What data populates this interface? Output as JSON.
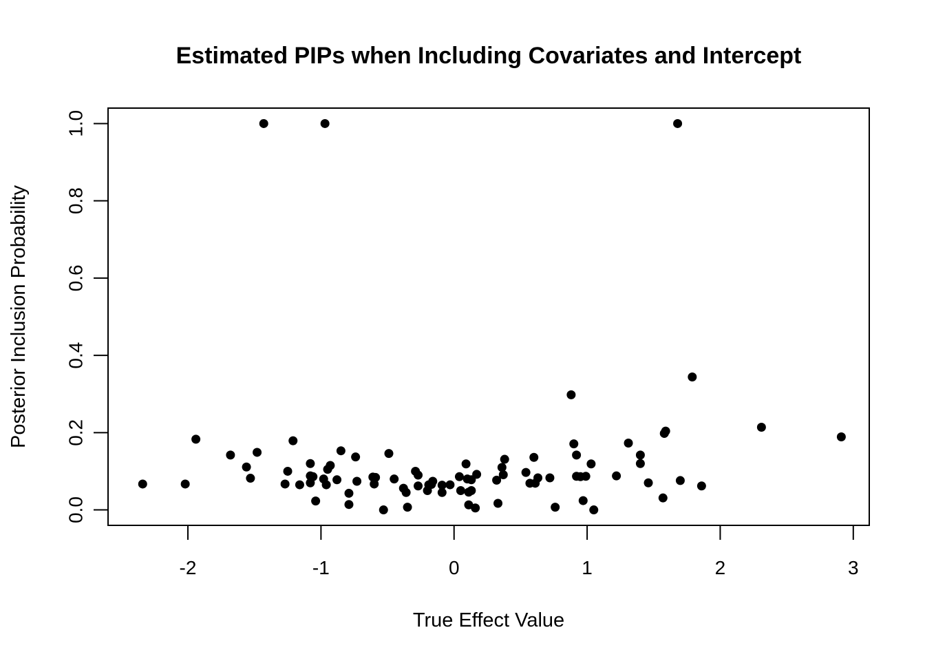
{
  "chart_data": {
    "type": "scatter",
    "title": "Estimated PIPs when Including Covariates and Intercept",
    "xlabel": "True Effect Value",
    "ylabel": "Posterior Inclusion Probability",
    "xlim": [
      -2.6,
      3.12
    ],
    "ylim": [
      -0.04,
      1.04
    ],
    "xticks": [
      -2,
      -1,
      0,
      1,
      2,
      3
    ],
    "xtick_labels": [
      "-2",
      "-1",
      "0",
      "1",
      "2",
      "3"
    ],
    "yticks": [
      0.0,
      0.2,
      0.4,
      0.6,
      0.8,
      1.0
    ],
    "ytick_labels": [
      "0.0",
      "0.2",
      "0.4",
      "0.6",
      "0.8",
      "1.0"
    ],
    "grid": false,
    "legend": "none",
    "marker_color": "#000000",
    "points": [
      [
        -1.43,
        1.0
      ],
      [
        -0.97,
        1.0
      ],
      [
        1.68,
        1.0
      ],
      [
        1.79,
        0.344
      ],
      [
        0.88,
        0.298
      ],
      [
        2.31,
        0.214
      ],
      [
        2.91,
        0.189
      ],
      [
        1.59,
        0.204
      ],
      [
        1.58,
        0.198
      ],
      [
        -1.94,
        0.183
      ],
      [
        -1.21,
        0.179
      ],
      [
        1.31,
        0.173
      ],
      [
        0.9,
        0.171
      ],
      [
        -0.85,
        0.153
      ],
      [
        -1.48,
        0.149
      ],
      [
        -0.49,
        0.146
      ],
      [
        -1.68,
        0.142
      ],
      [
        0.92,
        0.142
      ],
      [
        1.4,
        0.142
      ],
      [
        -0.74,
        0.137
      ],
      [
        0.6,
        0.136
      ],
      [
        0.38,
        0.131
      ],
      [
        -1.56,
        0.111
      ],
      [
        -1.08,
        0.12
      ],
      [
        -0.93,
        0.115
      ],
      [
        0.09,
        0.119
      ],
      [
        1.03,
        0.119
      ],
      [
        1.4,
        0.12
      ],
      [
        0.36,
        0.11
      ],
      [
        -0.95,
        0.105
      ],
      [
        -0.29,
        0.1
      ],
      [
        -1.25,
        0.1
      ],
      [
        0.54,
        0.097
      ],
      [
        -0.27,
        0.09
      ],
      [
        0.17,
        0.092
      ],
      [
        -1.08,
        0.088
      ],
      [
        -1.06,
        0.086
      ],
      [
        0.04,
        0.086
      ],
      [
        0.37,
        0.091
      ],
      [
        0.92,
        0.087
      ],
      [
        0.95,
        0.086
      ],
      [
        0.99,
        0.087
      ],
      [
        1.22,
        0.088
      ],
      [
        0.72,
        0.083
      ],
      [
        0.63,
        0.083
      ],
      [
        -1.53,
        0.082
      ],
      [
        -0.45,
        0.08
      ],
      [
        -0.88,
        0.078
      ],
      [
        -0.98,
        0.08
      ],
      [
        -0.59,
        0.084
      ],
      [
        -0.61,
        0.085
      ],
      [
        0.13,
        0.078
      ],
      [
        0.1,
        0.08
      ],
      [
        -0.73,
        0.074
      ],
      [
        -0.16,
        0.074
      ],
      [
        0.32,
        0.077
      ],
      [
        1.7,
        0.076
      ],
      [
        1.46,
        0.07
      ],
      [
        0.57,
        0.069
      ],
      [
        0.61,
        0.069
      ],
      [
        -2.34,
        0.067
      ],
      [
        -2.02,
        0.067
      ],
      [
        -1.27,
        0.067
      ],
      [
        -1.16,
        0.065
      ],
      [
        -1.08,
        0.07
      ],
      [
        -0.96,
        0.065
      ],
      [
        -0.6,
        0.067
      ],
      [
        -0.27,
        0.062
      ],
      [
        -0.19,
        0.065
      ],
      [
        -0.17,
        0.066
      ],
      [
        -0.09,
        0.064
      ],
      [
        -0.03,
        0.065
      ],
      [
        1.86,
        0.062
      ],
      [
        -0.38,
        0.056
      ],
      [
        -0.2,
        0.05
      ],
      [
        -0.09,
        0.045
      ],
      [
        0.05,
        0.05
      ],
      [
        0.11,
        0.046
      ],
      [
        0.13,
        0.05
      ],
      [
        -0.36,
        0.045
      ],
      [
        -0.79,
        0.043
      ],
      [
        -1.04,
        0.023
      ],
      [
        0.97,
        0.024
      ],
      [
        1.57,
        0.031
      ],
      [
        -0.79,
        0.014
      ],
      [
        0.11,
        0.013
      ],
      [
        0.33,
        0.017
      ],
      [
        -0.35,
        0.007
      ],
      [
        0.16,
        0.005
      ],
      [
        0.76,
        0.007
      ],
      [
        -0.53,
        0.0
      ],
      [
        1.05,
        0.0
      ]
    ]
  }
}
